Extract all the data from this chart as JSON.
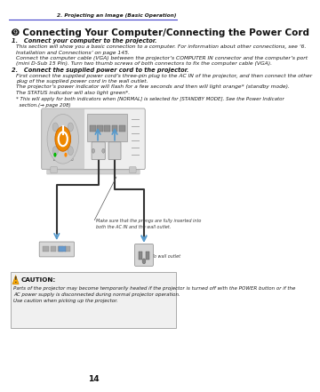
{
  "page_header_right": "2. Projecting an Image (Basic Operation)",
  "section_title": "➒ Connecting Your Computer/Connecting the Power Cord",
  "step1_title": "1.   Connect your computer to the projector.",
  "step1_para1": "This section will show you a basic connection to a computer. For information about other connections, see ‘6.\nInstallation and Connections’ on page 145.",
  "step1_para2": "Connect the computer cable (VGA) between the projector’s COMPUTER IN connector and the computer’s port\n(mini D-Sub 15 Pin). Turn two thumb screws of both connectors to fix the computer cable (VGA).",
  "step2_title": "2.   Connect the supplied power cord to the projector.",
  "step2_para1": "First connect the supplied power cord’s three-pin plug to the AC IN of the projector, and then connect the other\nplug of the supplied power cord in the wall outlet.",
  "step2_para2": "The projector’s power indicator will flash for a few seconds and then will light orange* (standby mode).",
  "step2_para3": "The STATUS indicator will also light green*.",
  "step2_note": "* This will apply for both indicators when [NORMAL] is selected for [STANDBY MODE]. See the Power Indicator\n  section.(→ page 208)",
  "diagram_note": "Make sure that the prongs are fully inserted into\nboth the AC IN and the wall outlet.",
  "diagram_arrow_label": "→ To wall outlet",
  "caution_title": "CAUTION:",
  "caution_text": "Parts of the projector may become temporarily heated if the projector is turned off with the POWER button or if the\nAC power supply is disconnected during normal projector operation.\nUse caution when picking up the projector.",
  "page_number": "14",
  "bg_color": "#ffffff",
  "header_line_color": "#4444cc",
  "text_color": "#1a1a1a",
  "caution_box_fill": "#f0f0f0",
  "caution_box_edge": "#aaaaaa",
  "blue_arrow": "#5599cc",
  "proj_body": "#e0e0e0",
  "proj_dark": "#b0b0b0",
  "proj_edge": "#888888",
  "orange_btn": "#ff8800",
  "connector_fill": "#c8c8c8",
  "cable_color": "#333333",
  "note_color": "#208020",
  "note208_color": "#0000cc"
}
